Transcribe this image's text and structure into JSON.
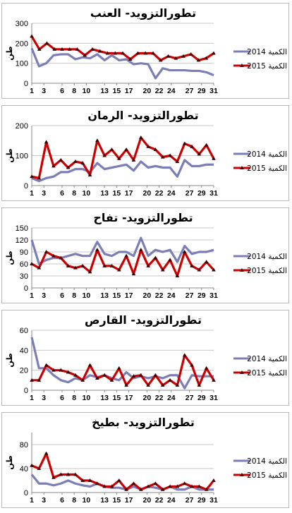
{
  "ylabel": "طن",
  "chart_data": [
    {
      "type": "line",
      "title": "تطورالتزويد- العنب",
      "x_ticks": [
        1,
        3,
        6,
        8,
        10,
        13,
        15,
        17,
        20,
        22,
        24,
        27,
        29,
        31
      ],
      "y_ticks": [
        0,
        100,
        200,
        300
      ],
      "ylim": [
        0,
        300
      ],
      "series": [
        {
          "name": "الكمية 2014",
          "values": [
            175,
            85,
            100,
            140,
            145,
            145,
            120,
            130,
            125,
            145,
            115,
            140,
            115,
            120,
            95,
            100,
            95,
            25,
            75,
            65,
            65,
            65,
            62,
            62,
            55,
            40
          ]
        },
        {
          "name": "الكمية 2015",
          "values": [
            235,
            170,
            200,
            170,
            170,
            170,
            170,
            140,
            170,
            160,
            150,
            150,
            150,
            120,
            150,
            150,
            150,
            115,
            135,
            125,
            135,
            145,
            115,
            125,
            150
          ]
        }
      ]
    },
    {
      "type": "line",
      "title": "تطورالتزويد- الرمان",
      "x_ticks": [
        1,
        3,
        6,
        8,
        10,
        13,
        15,
        17,
        20,
        22,
        24,
        27,
        29,
        31
      ],
      "y_ticks": [
        0,
        100,
        200
      ],
      "ylim": [
        0,
        200
      ],
      "series": [
        {
          "name": "الكمية 2014",
          "values": [
            25,
            15,
            25,
            30,
            45,
            45,
            55,
            55,
            45,
            75,
            55,
            60,
            65,
            70,
            50,
            80,
            60,
            65,
            60,
            60,
            30,
            85,
            65,
            65,
            70,
            70
          ]
        },
        {
          "name": "الكمية 2015",
          "values": [
            30,
            25,
            145,
            65,
            85,
            60,
            80,
            75,
            35,
            150,
            100,
            120,
            90,
            120,
            85,
            160,
            130,
            120,
            95,
            100,
            80,
            140,
            130,
            105,
            135,
            90
          ]
        }
      ]
    },
    {
      "type": "line",
      "title": "تطورالتزويد- تفاح",
      "x_ticks": [
        1,
        3,
        6,
        8,
        10,
        13,
        15,
        17,
        20,
        22,
        24,
        27,
        29,
        31
      ],
      "y_ticks": [
        0,
        30,
        60,
        90,
        120,
        150
      ],
      "ylim": [
        0,
        150
      ],
      "series": [
        {
          "name": "الكمية 2014",
          "values": [
            120,
            60,
            70,
            75,
            75,
            80,
            85,
            80,
            80,
            115,
            85,
            80,
            90,
            90,
            80,
            125,
            80,
            95,
            90,
            95,
            65,
            105,
            85,
            90,
            90,
            95
          ]
        },
        {
          "name": "الكمية 2015",
          "values": [
            60,
            50,
            90,
            80,
            75,
            55,
            50,
            55,
            40,
            95,
            55,
            55,
            45,
            80,
            35,
            95,
            55,
            75,
            45,
            70,
            30,
            90,
            55,
            45,
            65,
            45
          ]
        }
      ]
    },
    {
      "type": "line",
      "title": "تطورالتزويد- القارص",
      "x_ticks": [
        1,
        3,
        6,
        8,
        10,
        13,
        15,
        17,
        20,
        22,
        24,
        27,
        29,
        31
      ],
      "y_ticks": [
        0,
        20,
        40,
        60
      ],
      "ylim": [
        0,
        60
      ],
      "series": [
        {
          "name": "الكمية 2014",
          "values": [
            53,
            22,
            22,
            15,
            10,
            8,
            12,
            10,
            15,
            13,
            15,
            12,
            10,
            18,
            12,
            14,
            12,
            14,
            12,
            15,
            15,
            2,
            15,
            14,
            14,
            14
          ]
        },
        {
          "name": "الكمية 2015",
          "values": [
            10,
            10,
            25,
            20,
            20,
            18,
            15,
            10,
            25,
            12,
            15,
            10,
            22,
            5,
            14,
            15,
            5,
            15,
            5,
            10,
            5,
            35,
            25,
            5,
            22,
            10
          ]
        }
      ]
    },
    {
      "type": "line",
      "title": "تطورالتزويد- بطيخ",
      "x_ticks": [
        1,
        3,
        6,
        8,
        10,
        13,
        15,
        17,
        20,
        22,
        24,
        27,
        29,
        31
      ],
      "y_ticks": [
        0,
        40,
        80
      ],
      "ylim": [
        0,
        100
      ],
      "series": [
        {
          "name": "الكمية 2014",
          "values": [
            30,
            15,
            15,
            12,
            15,
            20,
            15,
            12,
            10,
            15,
            10,
            8,
            8,
            5,
            10,
            5,
            10,
            8,
            5,
            10,
            5,
            5,
            10,
            5,
            5,
            5
          ]
        },
        {
          "name": "الكمية 2015",
          "values": [
            45,
            40,
            65,
            25,
            30,
            30,
            30,
            20,
            20,
            15,
            10,
            10,
            20,
            5,
            15,
            5,
            10,
            15,
            5,
            10,
            10,
            15,
            10,
            10,
            5,
            20
          ]
        }
      ]
    }
  ],
  "colors": {
    "s2014": "#7b7fb6",
    "s2015": "#cc0000",
    "marker": "#3a0000",
    "axis": "#888888",
    "grid": "#c8c8c8"
  }
}
